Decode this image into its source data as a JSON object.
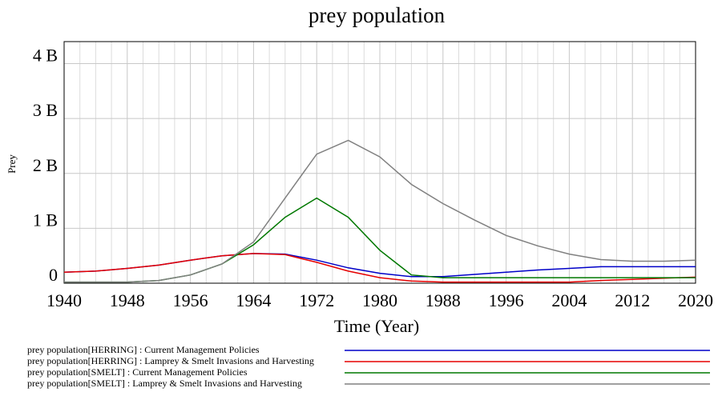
{
  "chart_data": {
    "type": "line",
    "title": "prey population",
    "x_label": "Time (Year)",
    "y_label": "Prey",
    "x": [
      1940,
      1944,
      1948,
      1952,
      1956,
      1960,
      1964,
      1968,
      1972,
      1976,
      1980,
      1984,
      1988,
      1992,
      1996,
      2000,
      2004,
      2008,
      2012,
      2016,
      2020
    ],
    "xlim": [
      1940,
      2020
    ],
    "xticks": [
      1940,
      1948,
      1956,
      1964,
      1972,
      1980,
      1988,
      1996,
      2004,
      2012,
      2020
    ],
    "ylim": [
      0,
      4400000000
    ],
    "yticks": [
      0,
      {
        "value": 1000000000,
        "label": "1 B"
      },
      {
        "value": 2000000000,
        "label": "2 B"
      },
      {
        "value": 3000000000,
        "label": "3 B"
      },
      {
        "value": 4000000000,
        "label": "4 B"
      }
    ],
    "grid": true,
    "series": [
      {
        "name": "prey population[HERRING] : Current Management Policies",
        "color": "#0000c8",
        "values": [
          200000000,
          220000000,
          270000000,
          330000000,
          420000000,
          500000000,
          540000000,
          530000000,
          420000000,
          280000000,
          180000000,
          120000000,
          120000000,
          160000000,
          200000000,
          240000000,
          270000000,
          300000000,
          300000000,
          300000000,
          300000000
        ]
      },
      {
        "name": "prey population[HERRING] : Lamprey & Smelt Invasions and Harvesting",
        "color": "#e60000",
        "values": [
          200000000,
          220000000,
          270000000,
          330000000,
          420000000,
          500000000,
          540000000,
          520000000,
          380000000,
          220000000,
          100000000,
          40000000,
          20000000,
          20000000,
          20000000,
          20000000,
          20000000,
          50000000,
          70000000,
          90000000,
          110000000
        ]
      },
      {
        "name": "prey population[SMELT] : Current Management Policies",
        "color": "#007800",
        "values": [
          20000000,
          20000000,
          20000000,
          50000000,
          150000000,
          350000000,
          700000000,
          1200000000,
          1550000000,
          1200000000,
          600000000,
          150000000,
          100000000,
          100000000,
          100000000,
          100000000,
          100000000,
          100000000,
          100000000,
          100000000,
          100000000
        ]
      },
      {
        "name": "prey population[SMELT] : Lamprey & Smelt Invasions and Harvesting",
        "color": "#808080",
        "values": [
          20000000,
          20000000,
          20000000,
          50000000,
          150000000,
          350000000,
          750000000,
          1550000000,
          2350000000,
          2600000000,
          2300000000,
          1800000000,
          1450000000,
          1150000000,
          870000000,
          680000000,
          530000000,
          430000000,
          400000000,
          400000000,
          420000000
        ]
      }
    ]
  }
}
